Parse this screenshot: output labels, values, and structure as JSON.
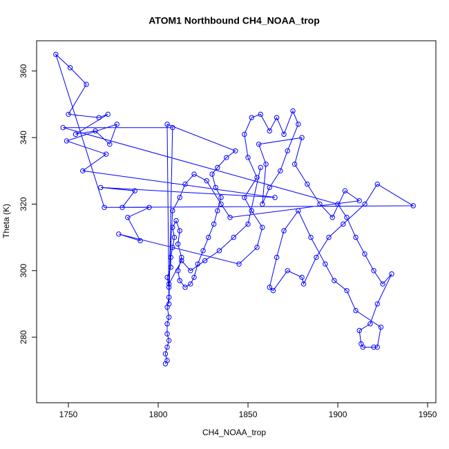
{
  "chart_data": {
    "type": "line",
    "title": "ATOM1 Northbound CH4_NOAA_trop",
    "x_label": "CH4_NOAA_trop",
    "y_label": "Theta (K)",
    "xlim": [
      1732.3,
      1954.6
    ],
    "ylim": [
      260.3,
      369.1
    ],
    "xticks": [
      1750,
      1800,
      1850,
      1900,
      1950
    ],
    "yticks": [
      280,
      300,
      320,
      340,
      360
    ],
    "color": "#0000ff",
    "markers": true,
    "x": [
      1804,
      1805,
      1804,
      1805,
      1806,
      1805,
      1805,
      1806,
      1805,
      1806,
      1806,
      1805,
      1807,
      1807,
      1808,
      1809,
      1808,
      1810,
      1812,
      1811,
      1813,
      1811,
      1812,
      1815,
      1818,
      1820,
      1822,
      1825,
      1828,
      1831,
      1833,
      1835,
      1832,
      1830,
      1833,
      1838,
      1843,
      1805,
      1806,
      1808,
      1747,
      1900,
      1905,
      1910,
      1915,
      1920,
      1925,
      1930,
      1922,
      1918,
      1912,
      1913,
      1914,
      1920,
      1922,
      1924,
      1910,
      1905,
      1898,
      1893,
      1885,
      1878,
      1870,
      1866,
      1862,
      1864,
      1872,
      1880,
      1881,
      1888,
      1895,
      1903,
      1915,
      1922,
      1942,
      1770,
      1743,
      1751,
      1760,
      1750,
      1767,
      1772,
      1754,
      1765,
      1773,
      1777,
      1749,
      1771,
      1758,
      1865,
      1768,
      1787,
      1780,
      1795,
      1783,
      1790,
      1778,
      1845,
      1855,
      1858,
      1852,
      1848,
      1855,
      1850,
      1848,
      1852,
      1857,
      1862,
      1866,
      1870,
      1875,
      1878,
      1872,
      1868,
      1862,
      1858,
      1860,
      1856,
      1880,
      1876,
      1883,
      1890,
      1897,
      1904,
      1912,
      1840,
      1835,
      1827,
      1820,
      1815,
      1812,
      1808,
      1806,
      1813,
      1818,
      1826,
      1834,
      1842,
      1850,
      1857
    ],
    "values": [
      272,
      273,
      275,
      277,
      279,
      281,
      284,
      286,
      289,
      292,
      295,
      298,
      301,
      304,
      307,
      310,
      313,
      315,
      312,
      308,
      304,
      300,
      297,
      295,
      296,
      298,
      302,
      306,
      310,
      314,
      318,
      322,
      325,
      329,
      331,
      334,
      336,
      344,
      290,
      343,
      343,
      320,
      316,
      310,
      305,
      300,
      296,
      299,
      290,
      284,
      282,
      278,
      277,
      277,
      277,
      283,
      288,
      294,
      297,
      302,
      310,
      318,
      312,
      304,
      295,
      294,
      300,
      298,
      296,
      304,
      310,
      314,
      320,
      326,
      319.5,
      319,
      365,
      361,
      356,
      347,
      346,
      347,
      341,
      342,
      338,
      344,
      339,
      335,
      330,
      322,
      325,
      324,
      319,
      319,
      316,
      309,
      311,
      302,
      307,
      313,
      318,
      322,
      328,
      334,
      341,
      346,
      347,
      342,
      346,
      341,
      348,
      344,
      336,
      330,
      325,
      320,
      332,
      338,
      340,
      332,
      326,
      320,
      316,
      324,
      321,
      316,
      320,
      327,
      329,
      326,
      322,
      318,
      296,
      303,
      300,
      303,
      306,
      310,
      314,
      331
    ]
  }
}
